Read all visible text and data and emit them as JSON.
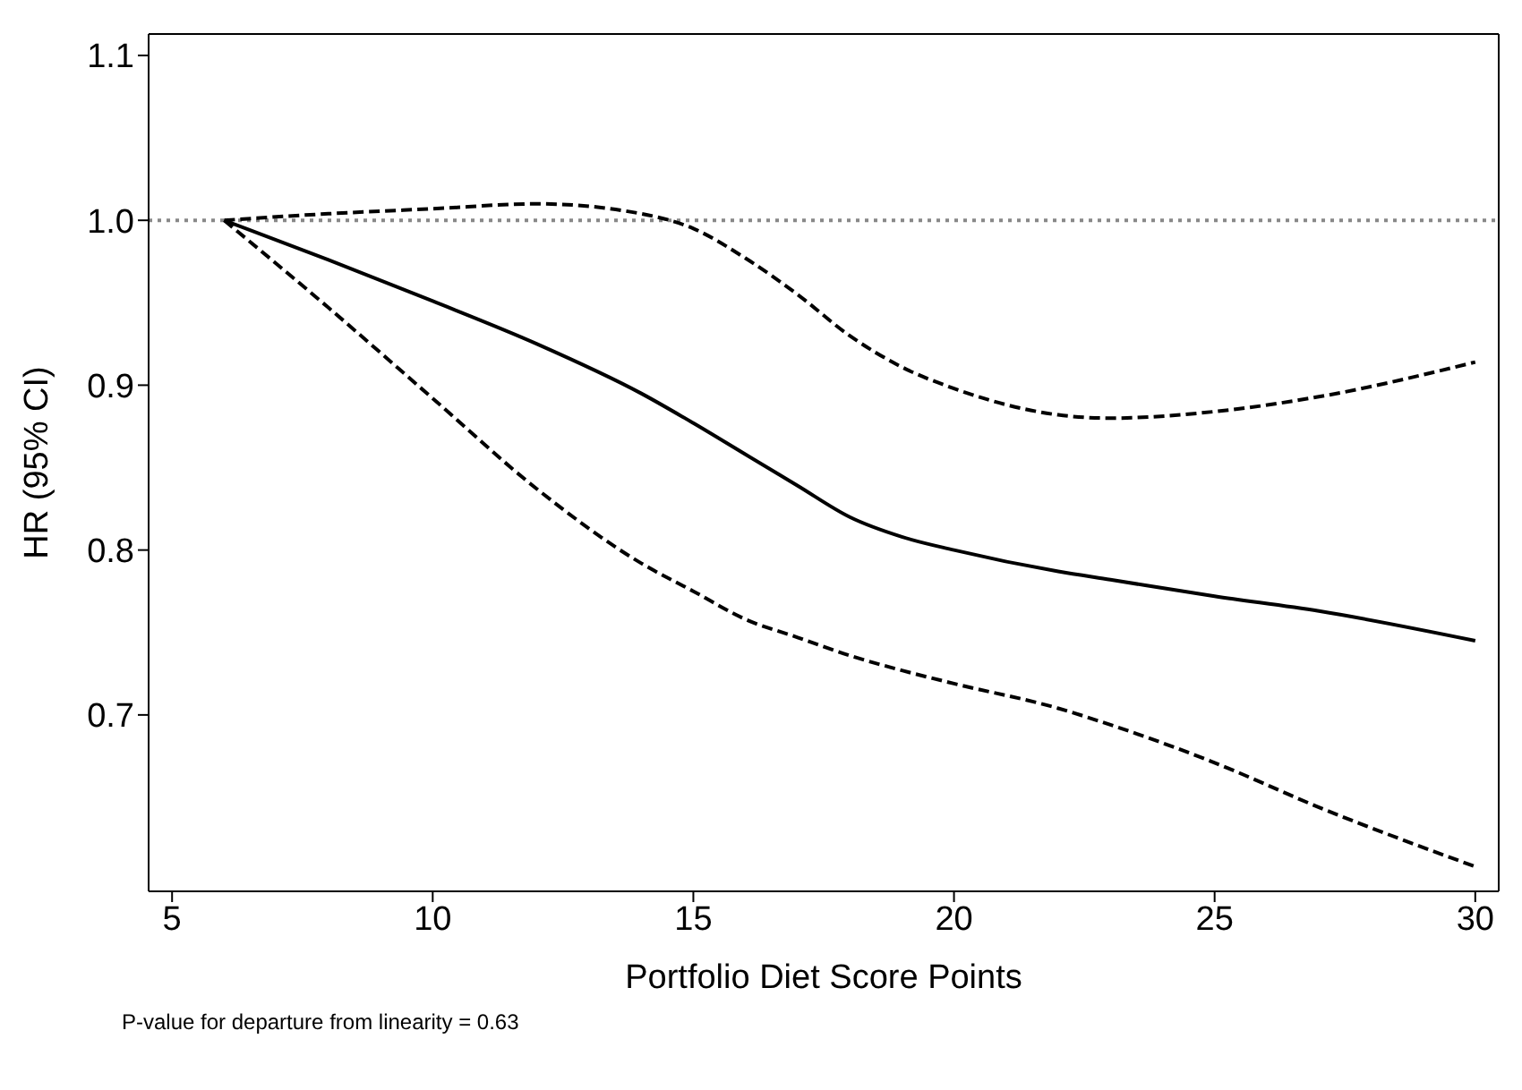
{
  "chart_data": {
    "type": "line",
    "xlabel": "Portfolio Diet Score Points",
    "ylabel": "HR (95% CI)",
    "x": [
      6,
      8,
      10,
      12,
      14,
      15,
      16,
      17,
      18,
      19,
      20,
      22,
      23,
      25,
      27,
      30
    ],
    "series": [
      {
        "color": "#000000",
        "line_style": "solid",
        "values": [
          1.0,
          0.976,
          0.951,
          0.925,
          0.895,
          0.877,
          0.858,
          0.839,
          0.82,
          0.808,
          0.8,
          0.787,
          0.782,
          0.772,
          0.763,
          0.745
        ]
      },
      {
        "color": "#000000",
        "line_style": "dashed",
        "values": [
          1.0,
          1.004,
          1.007,
          1.01,
          1.004,
          0.995,
          0.977,
          0.955,
          0.93,
          0.911,
          0.898,
          0.882,
          0.88,
          0.884,
          0.893,
          0.914
        ]
      },
      {
        "color": "#000000",
        "line_style": "dashed",
        "values": [
          1.0,
          0.947,
          0.892,
          0.837,
          0.792,
          0.775,
          0.758,
          0.747,
          0.736,
          0.727,
          0.719,
          0.704,
          0.694,
          0.671,
          0.644,
          0.608
        ]
      }
    ],
    "xlim": [
      4.55,
      30.45
    ],
    "xticks": [
      5,
      10,
      15,
      20,
      25,
      30
    ],
    "ylim": [
      0.593,
      1.113
    ],
    "yticks": [
      0.7,
      0.8,
      0.9,
      {
        "value": 1.0,
        "label": "1.0"
      },
      1.1
    ],
    "ref_lines": [
      {
        "axis": "y",
        "value": 1.0,
        "color": "#888888",
        "line_style": "dotted"
      }
    ],
    "grid": false,
    "marker": "none",
    "annotations": [
      "P-value for departure from linearity = 0.63"
    ]
  }
}
